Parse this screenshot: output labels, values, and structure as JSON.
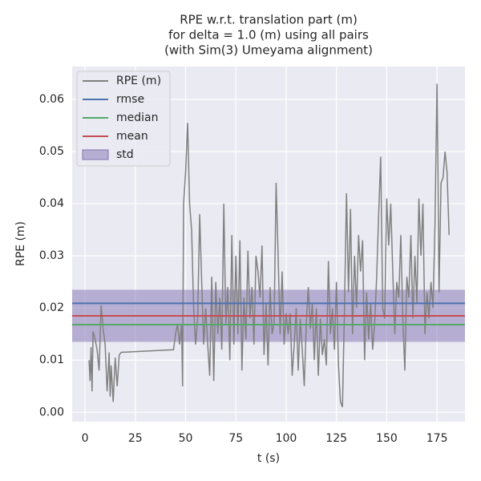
{
  "chart_data": {
    "type": "line",
    "title": [
      "RPE w.r.t. translation part (m)",
      "for delta = 1.0 (m) using all pairs",
      "(with Sim(3) Umeyama alignment)"
    ],
    "xlabel": "t (s)",
    "ylabel": "RPE (m)",
    "x": [
      2,
      2.5,
      3,
      3.5,
      4,
      5,
      6,
      7,
      8,
      9,
      10,
      11,
      12,
      12.5,
      13,
      14,
      15,
      16,
      17,
      18,
      44,
      45,
      46,
      47,
      48,
      48.5,
      49,
      50,
      51,
      52,
      53,
      54,
      55,
      56,
      57,
      58,
      59,
      60,
      61,
      62,
      63,
      64,
      65,
      66,
      67,
      68,
      69,
      70,
      71,
      72,
      73,
      74,
      75,
      76,
      77,
      78,
      79,
      80,
      81,
      82,
      83,
      84,
      85,
      86,
      87,
      88,
      89,
      90,
      91,
      92,
      93,
      94,
      95,
      96,
      97,
      98,
      99,
      100,
      101,
      102,
      103,
      104,
      105,
      106,
      107,
      108,
      109,
      110,
      111,
      112,
      113,
      114,
      115,
      116,
      117,
      118,
      119,
      120,
      121,
      122,
      123,
      124,
      125,
      126,
      127,
      128,
      129,
      130,
      131,
      132,
      133,
      134,
      135,
      136,
      137,
      138,
      139,
      140,
      141,
      142,
      143,
      144,
      145,
      146,
      147,
      148,
      149,
      150,
      151,
      152,
      153,
      154,
      155,
      156,
      157,
      158,
      159,
      160,
      161,
      162,
      163,
      164,
      165,
      166,
      167,
      168,
      169,
      170,
      171,
      172,
      173,
      174,
      175,
      175.5,
      176,
      177,
      178,
      179,
      180,
      181
    ],
    "series": [
      {
        "name": "RPE (m)",
        "color": "#808080",
        "values": [
          0.01,
          0.006,
          0.0125,
          0.004,
          0.0155,
          0.014,
          0.012,
          0.008,
          0.0205,
          0.016,
          0.013,
          0.004,
          0.0115,
          0.003,
          0.009,
          0.002,
          0.0105,
          0.005,
          0.011,
          0.0115,
          0.012,
          0.015,
          0.017,
          0.013,
          0.017,
          0.005,
          0.04,
          0.046,
          0.0555,
          0.04,
          0.035,
          0.02,
          0.013,
          0.018,
          0.038,
          0.025,
          0.013,
          0.02,
          0.013,
          0.007,
          0.026,
          0.006,
          0.025,
          0.015,
          0.022,
          0.012,
          0.04,
          0.017,
          0.024,
          0.01,
          0.034,
          0.013,
          0.03,
          0.015,
          0.033,
          0.008,
          0.022,
          0.014,
          0.031,
          0.018,
          0.024,
          0.013,
          0.03,
          0.027,
          0.022,
          0.032,
          0.011,
          0.021,
          0.009,
          0.024,
          0.015,
          0.017,
          0.044,
          0.03,
          0.015,
          0.027,
          0.013,
          0.019,
          0.015,
          0.019,
          0.007,
          0.013,
          0.02,
          0.008,
          0.018,
          0.012,
          0.005,
          0.017,
          0.024,
          0.016,
          0.021,
          0.01,
          0.02,
          0.007,
          0.018,
          0.011,
          0.014,
          0.009,
          0.029,
          0.015,
          0.02,
          0.012,
          0.025,
          0.009,
          0.002,
          0.001,
          0.02,
          0.042,
          0.023,
          0.039,
          0.015,
          0.03,
          0.02,
          0.034,
          0.027,
          0.033,
          0.01,
          0.023,
          0.014,
          0.021,
          0.012,
          0.017,
          0.026,
          0.038,
          0.049,
          0.02,
          0.018,
          0.041,
          0.032,
          0.04,
          0.027,
          0.015,
          0.025,
          0.022,
          0.034,
          0.018,
          0.008,
          0.026,
          0.022,
          0.034,
          0.018,
          0.03,
          0.021,
          0.041,
          0.03,
          0.04,
          0.015,
          0.023,
          0.018,
          0.025,
          0.02,
          0.036,
          0.063,
          0.045,
          0.023,
          0.044,
          0.045,
          0.05,
          0.046,
          0.034
        ]
      }
    ],
    "stats": [
      {
        "name": "rmse",
        "color": "#4c72b0",
        "value": 0.0209
      },
      {
        "name": "median",
        "color": "#55a868",
        "value": 0.0168
      },
      {
        "name": "mean",
        "color": "#c44e52",
        "value": 0.0185
      },
      {
        "name": "std",
        "color": "#8172b2",
        "value": 0.005
      }
    ],
    "xlim": [
      -6.4,
      188.9
    ],
    "ylim": [
      -0.0018,
      0.0663
    ],
    "xticks": [
      0,
      25,
      50,
      75,
      100,
      125,
      150,
      175
    ],
    "yticks": [
      {
        "value": 0,
        "label": "0.00"
      },
      {
        "value": 0.01,
        "label": "0.01"
      },
      {
        "value": 0.02,
        "label": "0.02"
      },
      {
        "value": 0.03,
        "label": "0.03"
      },
      {
        "value": 0.04,
        "label": "0.04"
      },
      {
        "value": 0.05,
        "label": "0.05"
      },
      {
        "value": 0.06,
        "label": "0.06"
      }
    ],
    "grid": true,
    "legend": "upper left"
  }
}
